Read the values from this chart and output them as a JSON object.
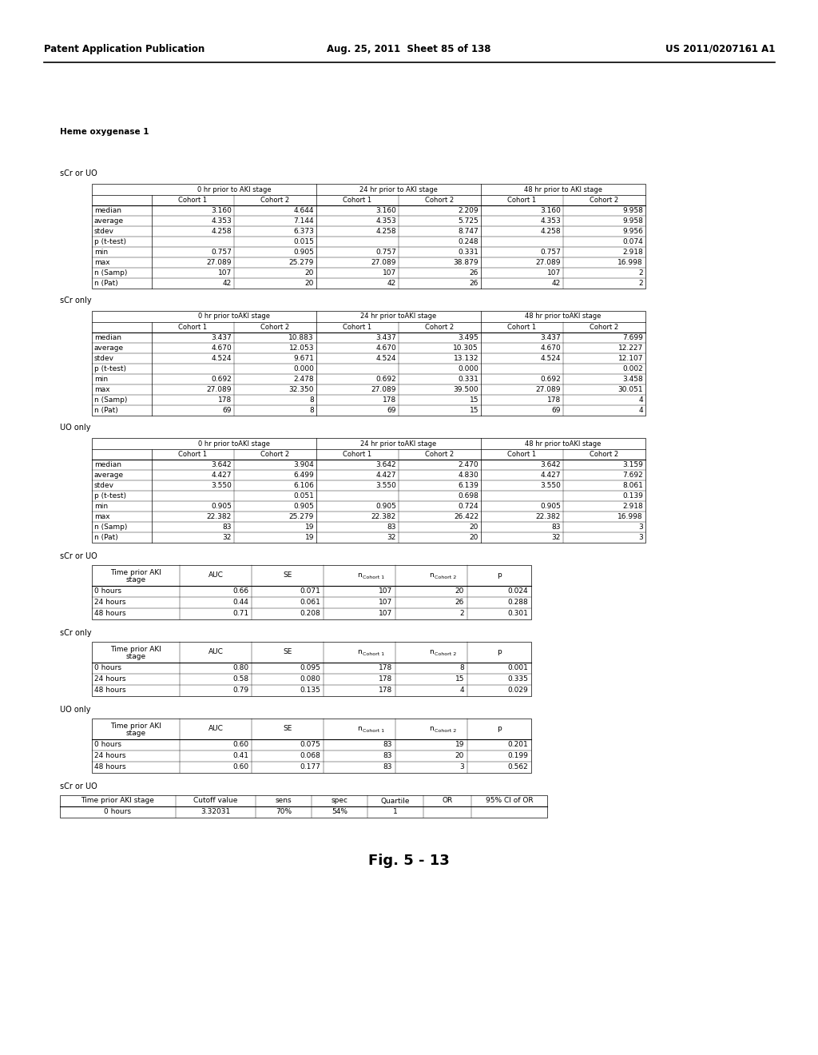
{
  "header_left": "Patent Application Publication",
  "header_mid": "Aug. 25, 2011  Sheet 85 of 138",
  "header_right": "US 2011/0207161 A1",
  "title": "Heme oxygenase 1",
  "footer": "Fig. 5 - 13",
  "section1_label": "sCr or UO",
  "section2_label": "sCr only",
  "section3_label": "UO only",
  "section4_label": "sCr or UO",
  "section5_label": "sCr only",
  "section6_label": "UO only",
  "section7_label": "sCr or UO",
  "table1_col_headers": [
    "",
    "0 hr prior to AKI stage",
    "",
    "24 hr prior to AKI stage",
    "",
    "48 hr prior to AKI stage",
    ""
  ],
  "table1_sub_headers": [
    "",
    "Cohort 1",
    "Cohort 2",
    "Cohort 1",
    "Cohort 2",
    "Cohort 1",
    "Cohort 2"
  ],
  "table1_rows": [
    [
      "median",
      "3.160",
      "4.644",
      "3.160",
      "2.209",
      "3.160",
      "9.958"
    ],
    [
      "average",
      "4.353",
      "7.144",
      "4.353",
      "5.725",
      "4.353",
      "9.958"
    ],
    [
      "stdev",
      "4.258",
      "6.373",
      "4.258",
      "8.747",
      "4.258",
      "9.956"
    ],
    [
      "p (t-test)",
      "",
      "0.015",
      "",
      "0.248",
      "",
      "0.074"
    ],
    [
      "min",
      "0.757",
      "0.905",
      "0.757",
      "0.331",
      "0.757",
      "2.918"
    ],
    [
      "max",
      "27.089",
      "25.279",
      "27.089",
      "38.879",
      "27.089",
      "16.998"
    ],
    [
      "n (Samp)",
      "107",
      "20",
      "107",
      "26",
      "107",
      "2"
    ],
    [
      "n (Pat)",
      "42",
      "20",
      "42",
      "26",
      "42",
      "2"
    ]
  ],
  "table2_rows": [
    [
      "median",
      "3.437",
      "10.883",
      "3.437",
      "3.495",
      "3.437",
      "7.699"
    ],
    [
      "average",
      "4.670",
      "12.053",
      "4.670",
      "10.305",
      "4.670",
      "12.227"
    ],
    [
      "stdev",
      "4.524",
      "9.671",
      "4.524",
      "13.132",
      "4.524",
      "12.107"
    ],
    [
      "p (t-test)",
      "",
      "0.000",
      "",
      "0.000",
      "",
      "0.002"
    ],
    [
      "min",
      "0.692",
      "2.478",
      "0.692",
      "0.331",
      "0.692",
      "3.458"
    ],
    [
      "max",
      "27.089",
      "32.350",
      "27.089",
      "39.500",
      "27.089",
      "30.051"
    ],
    [
      "n (Samp)",
      "178",
      "8",
      "178",
      "15",
      "178",
      "4"
    ],
    [
      "n (Pat)",
      "69",
      "8",
      "69",
      "15",
      "69",
      "4"
    ]
  ],
  "table3_rows": [
    [
      "median",
      "3.642",
      "3.904",
      "3.642",
      "2.470",
      "3.642",
      "3.159"
    ],
    [
      "average",
      "4.427",
      "6.499",
      "4.427",
      "4.830",
      "4.427",
      "7.692"
    ],
    [
      "stdev",
      "3.550",
      "6.106",
      "3.550",
      "6.139",
      "3.550",
      "8.061"
    ],
    [
      "p (t-test)",
      "",
      "0.051",
      "",
      "0.698",
      "",
      "0.139"
    ],
    [
      "min",
      "0.905",
      "0.905",
      "0.905",
      "0.724",
      "0.905",
      "2.918"
    ],
    [
      "max",
      "22.382",
      "25.279",
      "22.382",
      "26.422",
      "22.382",
      "16.998"
    ],
    [
      "n (Samp)",
      "83",
      "19",
      "83",
      "20",
      "83",
      "3"
    ],
    [
      "n (Pat)",
      "32",
      "19",
      "32",
      "20",
      "32",
      "3"
    ]
  ],
  "auc_col_headers": [
    "Time prior AKI\nstage",
    "AUC",
    "SE",
    "n_Cohort 1",
    "n_Cohort 2",
    "p"
  ],
  "auc_table1_rows": [
    [
      "0 hours",
      "0.66",
      "0.071",
      "107",
      "20",
      "0.024"
    ],
    [
      "24 hours",
      "0.44",
      "0.061",
      "107",
      "26",
      "0.288"
    ],
    [
      "48 hours",
      "0.71",
      "0.208",
      "107",
      "2",
      "0.301"
    ]
  ],
  "auc_table2_rows": [
    [
      "0 hours",
      "0.80",
      "0.095",
      "178",
      "8",
      "0.001"
    ],
    [
      "24 hours",
      "0.58",
      "0.080",
      "178",
      "15",
      "0.335"
    ],
    [
      "48 hours",
      "0.79",
      "0.135",
      "178",
      "4",
      "0.029"
    ]
  ],
  "auc_table3_rows": [
    [
      "0 hours",
      "0.60",
      "0.075",
      "83",
      "19",
      "0.201"
    ],
    [
      "24 hours",
      "0.41",
      "0.068",
      "83",
      "20",
      "0.199"
    ],
    [
      "48 hours",
      "0.60",
      "0.177",
      "83",
      "3",
      "0.562"
    ]
  ],
  "bottom_table_headers": [
    "Time prior AKI stage",
    "Cutoff value",
    "sens",
    "spec",
    "Quartile",
    "OR",
    "95% CI of OR"
  ],
  "bottom_table_section": "sCr or UO",
  "bottom_table_rows": [
    [
      "0 hours",
      "3.32031",
      "70%",
      "54%",
      "1",
      "",
      ""
    ]
  ]
}
